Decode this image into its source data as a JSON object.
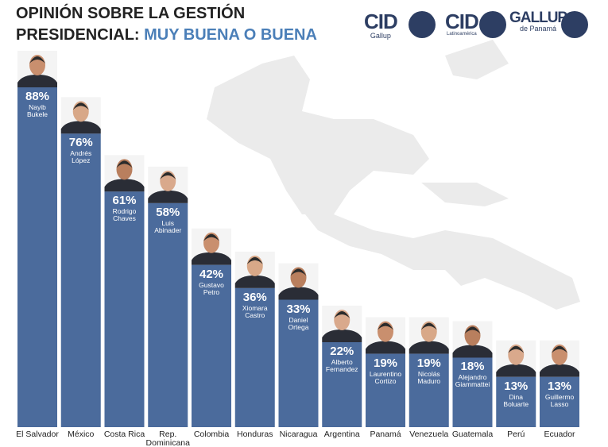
{
  "chart_data": {
    "type": "bar",
    "title": "OPINIÓN SOBRE LA GESTIÓN PRESIDENCIAL:",
    "title_highlight": "MUY BUENA O BUENA",
    "logos": [
      {
        "name": "CID",
        "sub": "Gallup"
      },
      {
        "name": "CID",
        "sub": "Latinoamérica"
      },
      {
        "name": "GALLUP",
        "sub": "de Panamá"
      }
    ],
    "categories": [
      "El Salvador",
      "México",
      "Costa Rica",
      "Rep. Dominicana",
      "Colombia",
      "Honduras",
      "Nicaragua",
      "Argentina",
      "Panamá",
      "Venezuela",
      "Guatemala",
      "Perú",
      "Ecuador"
    ],
    "values": [
      88,
      76,
      61,
      58,
      42,
      36,
      33,
      22,
      19,
      19,
      18,
      13,
      13
    ],
    "value_labels": [
      "88%",
      "76%",
      "61%",
      "58%",
      "42%",
      "36%",
      "33%",
      "22%",
      "19%",
      "19%",
      "18%",
      "13%",
      "13%"
    ],
    "people": [
      "Nayib Bukele",
      "Andrés López",
      "Rodrigo Chaves",
      "Luis Abinader",
      "Gustavo Petro",
      "Xiomara Castro",
      "Daniel Ortega",
      "Alberto Fernandez",
      "Laurentino Cortizo",
      "Nicolás Maduro",
      "Alejandro Giammattei",
      "Dina Boluarte",
      "Guillermo Lasso"
    ],
    "color": "#4b6b9c",
    "ylim": [
      0,
      88
    ]
  }
}
